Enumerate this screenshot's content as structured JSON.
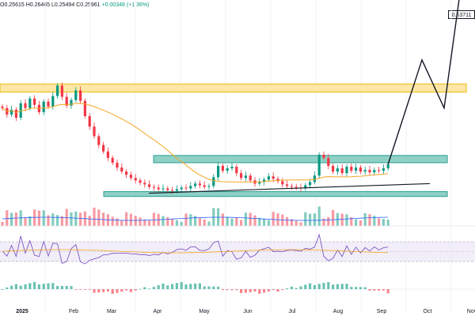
{
  "chart_data": {
    "type": "candlestick",
    "ohlc_header": {
      "open": "O0.25615",
      "high": "H0.26465",
      "low": "L0.25494",
      "close": "C0.25961",
      "change": "+0.00348 (+1.36%)"
    },
    "price_label": "0.53711",
    "x_tick_labels": [
      "2025",
      "Feb",
      "Mar",
      "Apr",
      "May",
      "Jun",
      "Jul",
      "Aug",
      "Sep",
      "Oct",
      "Nov"
    ],
    "close_series": [
      0.33,
      0.322,
      0.328,
      0.318,
      0.336,
      0.33,
      0.342,
      0.334,
      0.325,
      0.338,
      0.332,
      0.345,
      0.358,
      0.344,
      0.333,
      0.34,
      0.352,
      0.339,
      0.32,
      0.307,
      0.295,
      0.284,
      0.276,
      0.268,
      0.262,
      0.256,
      0.251,
      0.247,
      0.243,
      0.24,
      0.237,
      0.235,
      0.232,
      0.231,
      0.229,
      0.23,
      0.228,
      0.227,
      0.229,
      0.231,
      0.23,
      0.233,
      0.236,
      0.234,
      0.232,
      0.233,
      0.244,
      0.258,
      0.252,
      0.255,
      0.257,
      0.249,
      0.243,
      0.246,
      0.24,
      0.236,
      0.238,
      0.241,
      0.245,
      0.242,
      0.239,
      0.235,
      0.233,
      0.232,
      0.231,
      0.23,
      0.234,
      0.238,
      0.246,
      0.272,
      0.268,
      0.258,
      0.251,
      0.255,
      0.249,
      0.257,
      0.252,
      0.256,
      0.251,
      0.253,
      0.25,
      0.253,
      0.252,
      0.255,
      0.26
    ],
    "projection_path": [
      0.26,
      0.39,
      0.33,
      0.537
    ],
    "zones": {
      "resistance": [
        0.35,
        0.36
      ],
      "range_top": [
        0.262,
        0.271
      ],
      "range_bottom": [
        0.22,
        0.226
      ]
    },
    "trendline": [
      0.224,
      0.236
    ],
    "colors": {
      "up": "#089981",
      "down": "#f23645",
      "resistance_fill": "#fce7a6",
      "resistance_stroke": "#f0b90b",
      "zone_fill": "#8fd1c6",
      "zone_stroke": "#2a9d8f",
      "ma": "#f5a623",
      "rsi": "#7e57c2",
      "volume_ma": "#2962ff"
    }
  }
}
